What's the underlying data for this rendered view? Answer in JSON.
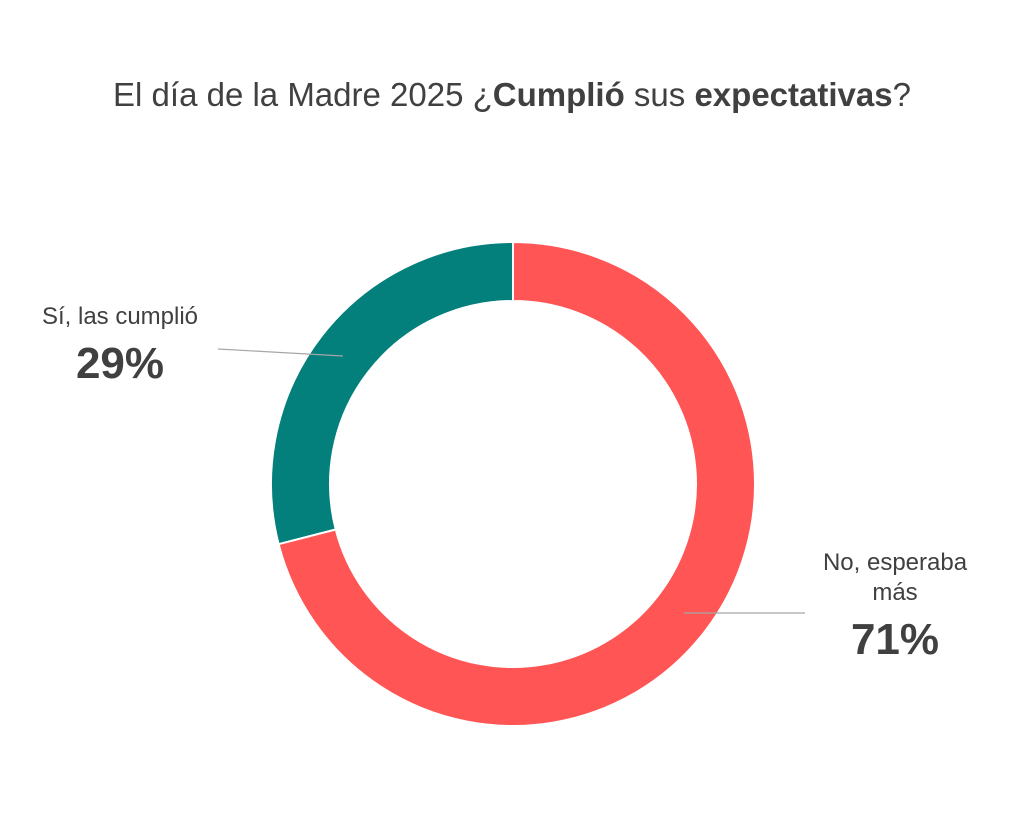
{
  "chart_data": {
    "type": "pie",
    "variant": "donut",
    "title_parts": [
      {
        "text": "El día de la Madre 2025 ¿",
        "bold": false
      },
      {
        "text": "Cumplió",
        "bold": true
      },
      {
        "text": " sus ",
        "bold": false
      },
      {
        "text": "expectativas",
        "bold": true
      },
      {
        "text": "?",
        "bold": false
      }
    ],
    "title": "El día de la Madre 2025 ¿Cumplió sus expectativas?",
    "slices": [
      {
        "label": "Sí, las cumplió",
        "value": 29,
        "display": "29%",
        "color": "#037F7C"
      },
      {
        "label": "No, esperaba más",
        "value": 71,
        "display": "71%",
        "color": "#FF5555"
      }
    ],
    "order": "counterclockwise-from-top for first slice",
    "legend": "none (data labels with leader lines)"
  }
}
